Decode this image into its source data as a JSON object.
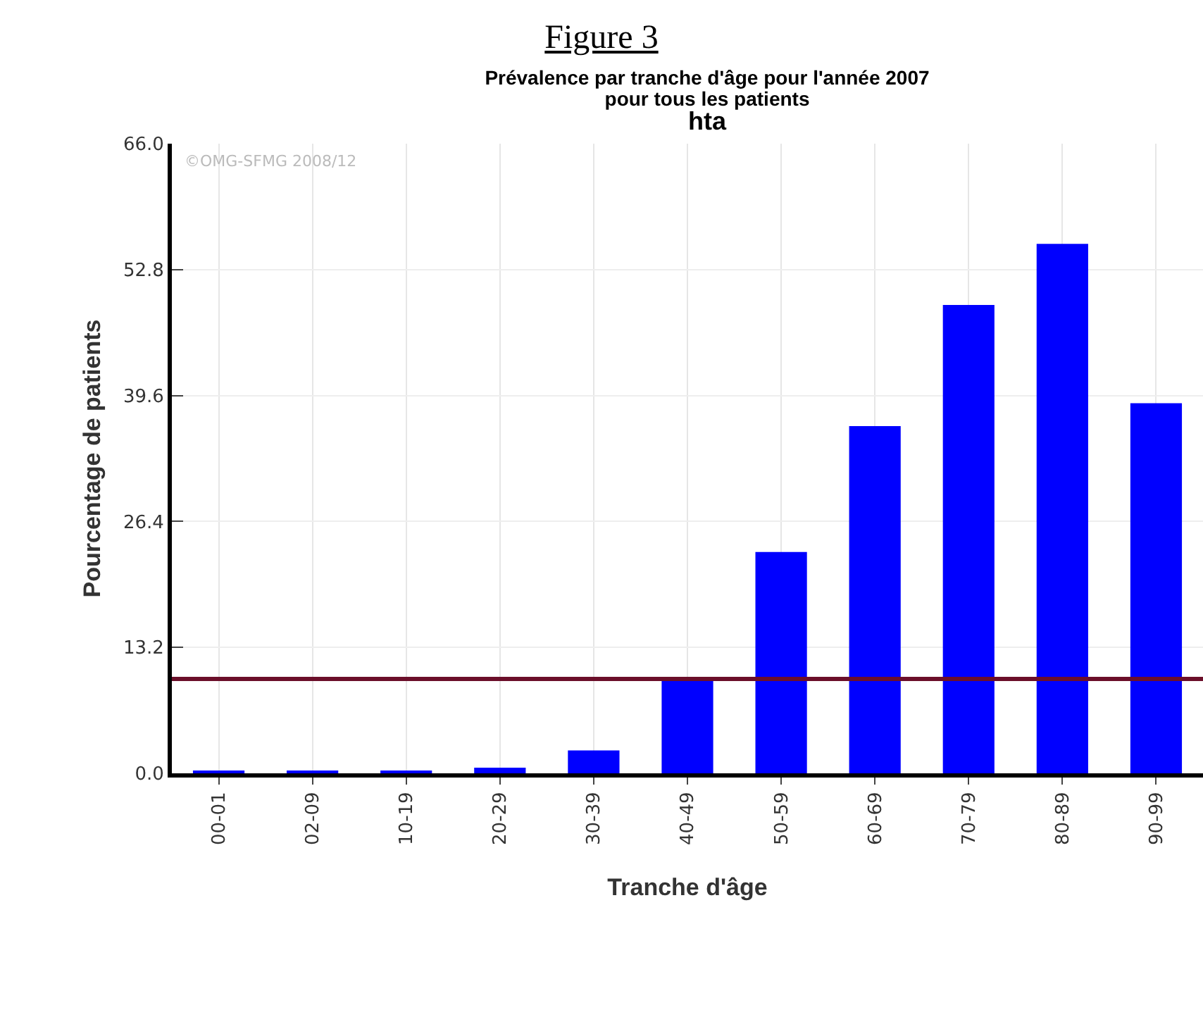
{
  "chart_data": {
    "type": "bar",
    "title": "Figure 3",
    "subtitle": "Prévalence par tranche d'âge pour l'année 2007\npour tous les patients",
    "xlabel": "Tranche d'âge",
    "ylabel": "Pourcentage de patients",
    "annotations": [
      "hta",
      "©OMG-SFMG 2008/12"
    ],
    "categories": [
      "00-01",
      "02-09",
      "10-19",
      "20-29",
      "30-39",
      "40-49",
      "50-59",
      "60-69",
      "70-79",
      "80-89",
      "90-99"
    ],
    "values": [
      0.3,
      0.3,
      0.3,
      0.6,
      2.4,
      9.9,
      23.2,
      36.4,
      49.1,
      55.5,
      38.8
    ],
    "color": "#0000ff",
    "ylim": [
      0,
      66
    ],
    "yticks": [
      {
        "value": 0,
        "label": "0.0"
      },
      13.2,
      26.4,
      39.6,
      52.8,
      {
        "value": 66,
        "label": "66.0"
      }
    ],
    "ref_lines": [
      {
        "axis": "y",
        "value": 9.9,
        "color": "#6b0f2a"
      }
    ],
    "grid": true
  }
}
